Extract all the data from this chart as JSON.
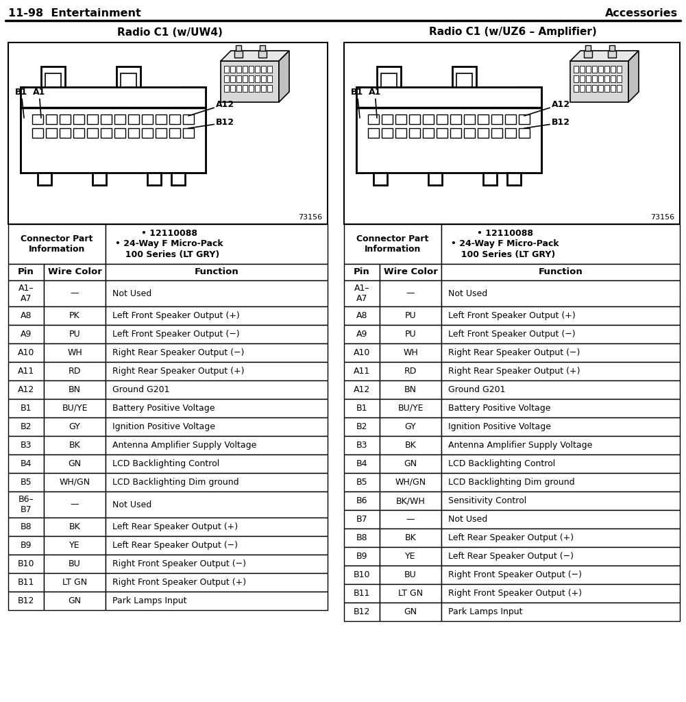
{
  "title_left": "11-98  Entertainment",
  "title_right": "Accessories",
  "header_left": "Radio C1 (w/UW4)",
  "header_right": "Radio C1 (w/UZ6 – Amplifier)",
  "connector_info_label": "Connector Part\nInformation",
  "connector_bullets": "• 12110088\n• 24-Way F Micro-Pack\n  100 Series (LT GRY)",
  "diagram_number": "73156",
  "table_left": [
    [
      "A1–\nA7",
      "—",
      "Not Used"
    ],
    [
      "A8",
      "PK",
      "Left Front Speaker Output (+)"
    ],
    [
      "A9",
      "PU",
      "Left Front Speaker Output (−)"
    ],
    [
      "A10",
      "WH",
      "Right Rear Speaker Output (−)"
    ],
    [
      "A11",
      "RD",
      "Right Rear Speaker Output (+)"
    ],
    [
      "A12",
      "BN",
      "Ground G201"
    ],
    [
      "B1",
      "BU/YE",
      "Battery Positive Voltage"
    ],
    [
      "B2",
      "GY",
      "Ignition Positive Voltage"
    ],
    [
      "B3",
      "BK",
      "Antenna Amplifier Supply Voltage"
    ],
    [
      "B4",
      "GN",
      "LCD Backlighting Control"
    ],
    [
      "B5",
      "WH/GN",
      "LCD Backlighting Dim ground"
    ],
    [
      "B6–\nB7",
      "—",
      "Not Used"
    ],
    [
      "B8",
      "BK",
      "Left Rear Speaker Output (+)"
    ],
    [
      "B9",
      "YE",
      "Left Rear Speaker Output (−)"
    ],
    [
      "B10",
      "BU",
      "Right Front Speaker Output (−)"
    ],
    [
      "B11",
      "LT GN",
      "Right Front Speaker Output (+)"
    ],
    [
      "B12",
      "GN",
      "Park Lamps Input"
    ]
  ],
  "table_right": [
    [
      "A1–\nA7",
      "—",
      "Not Used"
    ],
    [
      "A8",
      "PU",
      "Left Front Speaker Output (+)"
    ],
    [
      "A9",
      "PU",
      "Left Front Speaker Output (−)"
    ],
    [
      "A10",
      "WH",
      "Right Rear Speaker Output (−)"
    ],
    [
      "A11",
      "RD",
      "Right Rear Speaker Output (+)"
    ],
    [
      "A12",
      "BN",
      "Ground G201"
    ],
    [
      "B1",
      "BU/YE",
      "Battery Positive Voltage"
    ],
    [
      "B2",
      "GY",
      "Ignition Positive Voltage"
    ],
    [
      "B3",
      "BK",
      "Antenna Amplifier Supply Voltage"
    ],
    [
      "B4",
      "GN",
      "LCD Backlighting Control"
    ],
    [
      "B5",
      "WH/GN",
      "LCD Backlighting Dim ground"
    ],
    [
      "B6",
      "BK/WH",
      "Sensitivity Control"
    ],
    [
      "B7",
      "—",
      "Not Used"
    ],
    [
      "B8",
      "BK",
      "Left Rear Speaker Output (+)"
    ],
    [
      "B9",
      "YE",
      "Left Rear Speaker Output (−)"
    ],
    [
      "B10",
      "BU",
      "Right Front Speaker Output (−)"
    ],
    [
      "B11",
      "LT GN",
      "Right Front Speaker Output (+)"
    ],
    [
      "B12",
      "GN",
      "Park Lamps Input"
    ]
  ]
}
